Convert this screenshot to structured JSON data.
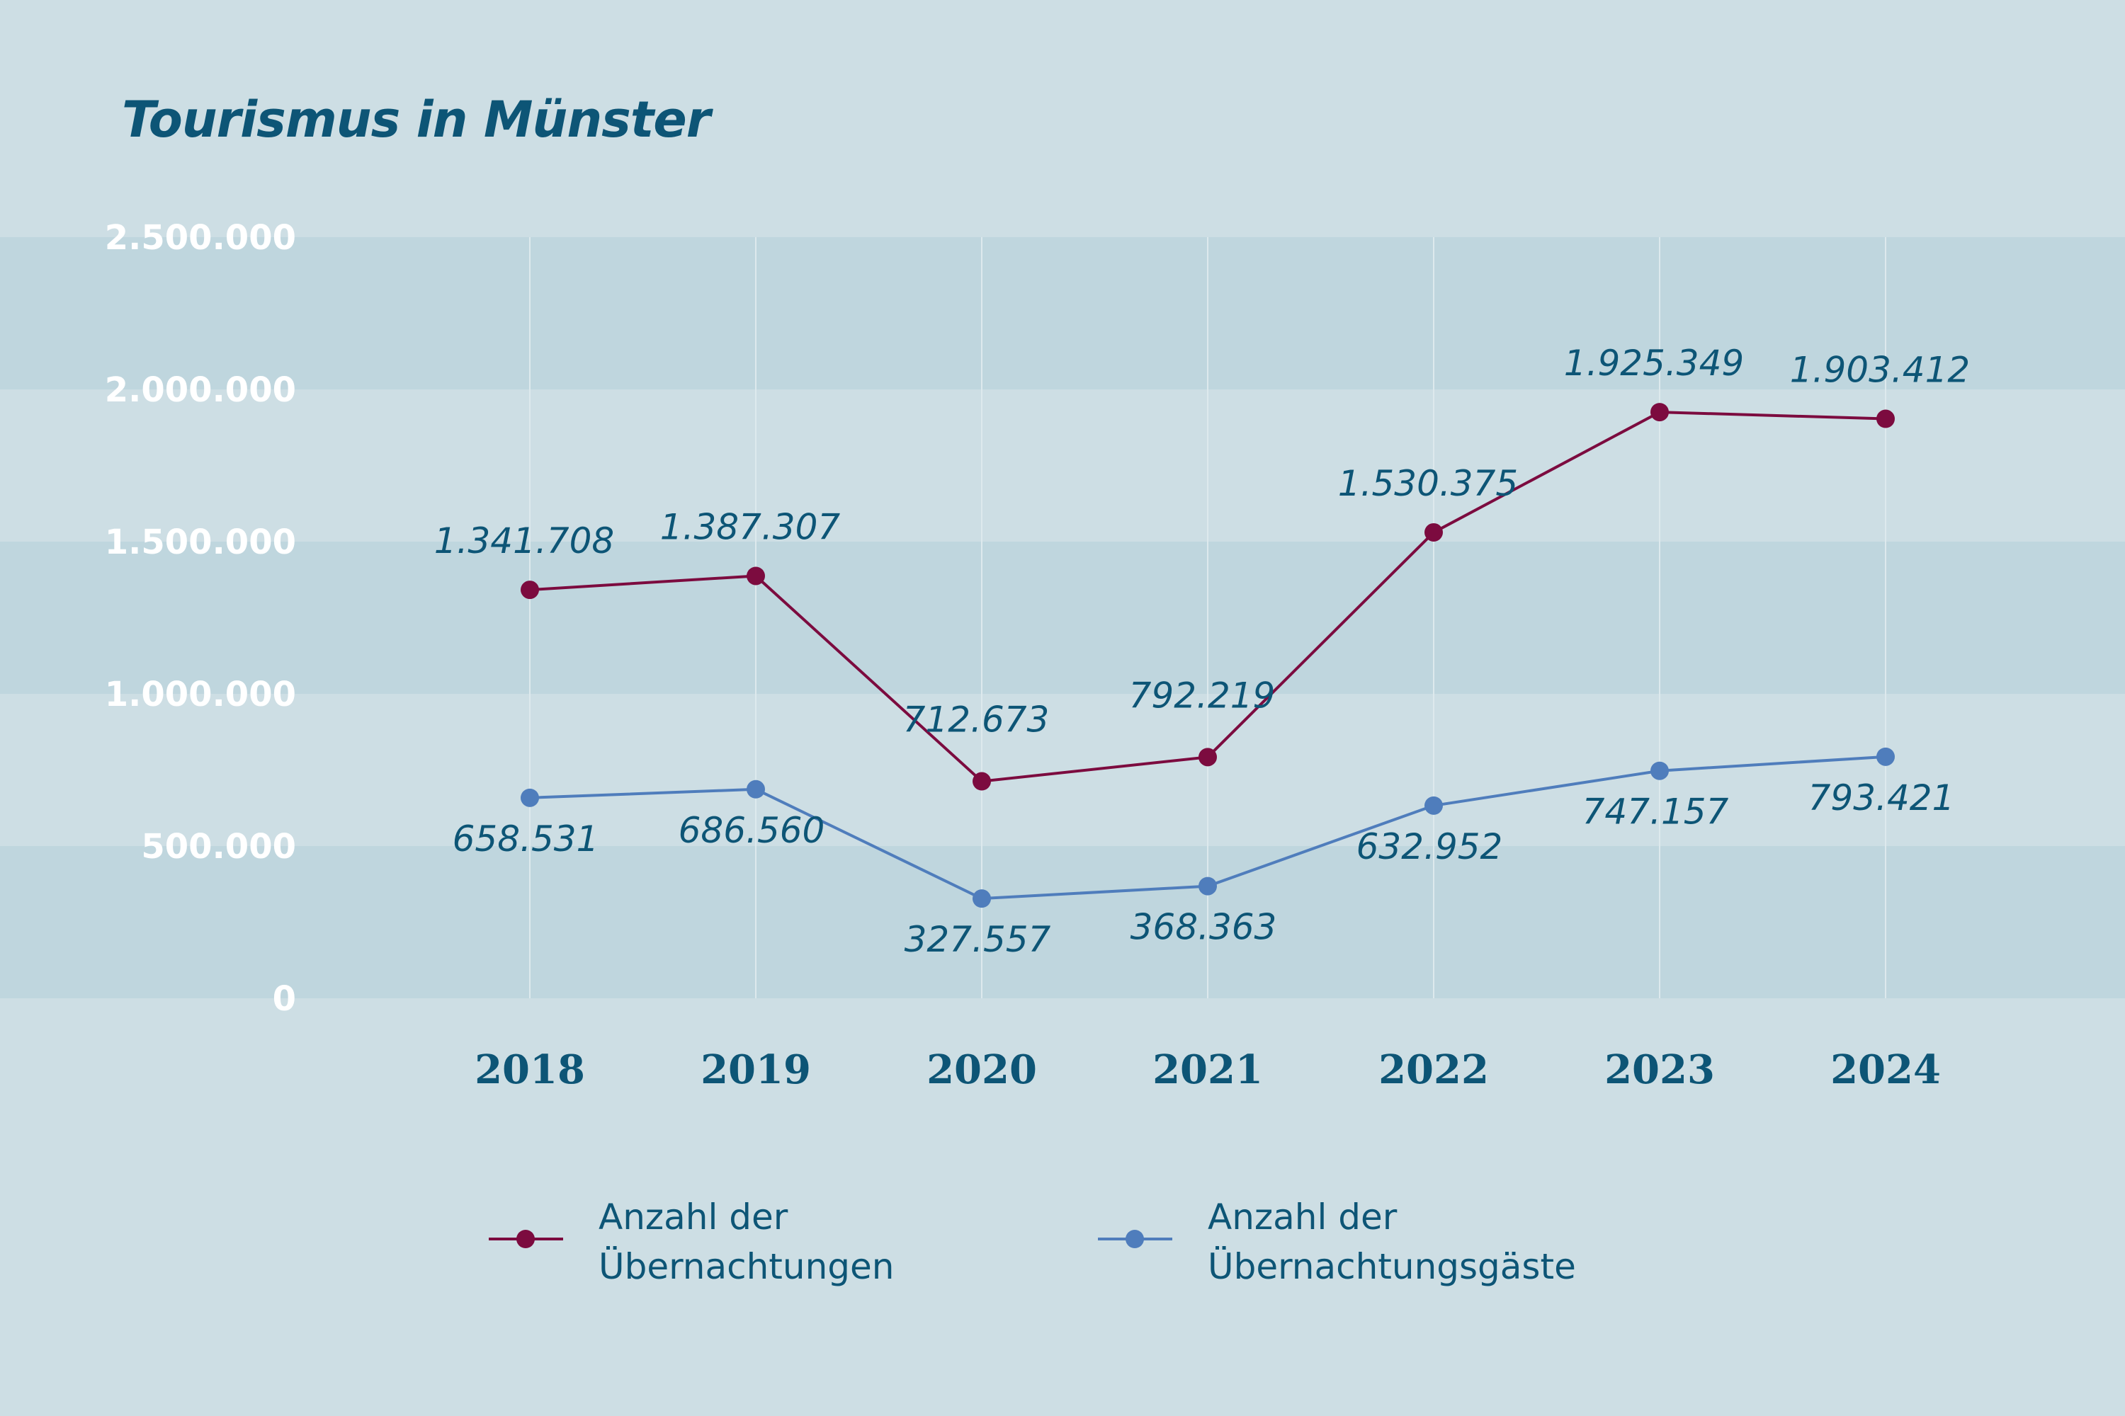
{
  "title": "Tourismus in Münster",
  "colors": {
    "background": "#cddee4",
    "band": "#bfd6de",
    "text": "#0d5576",
    "series1": "#7c0b3f",
    "series2": "#4f7dbc"
  },
  "chart_data": {
    "type": "line",
    "title": "Tourismus in Münster",
    "xlabel": "",
    "ylabel": "",
    "categories": [
      "2018",
      "2019",
      "2020",
      "2021",
      "2022",
      "2023",
      "2024"
    ],
    "ylim": [
      0,
      2500000
    ],
    "yticks": [
      0,
      500000,
      1000000,
      1500000,
      2000000,
      2500000
    ],
    "ytick_labels": [
      "0",
      "500.000",
      "1.000.000",
      "1.500.000",
      "2.000.000",
      "2.500.000"
    ],
    "grid": "vertical lines, alternating horizontal bands",
    "legend_position": "bottom",
    "series": [
      {
        "name": "Anzahl der Übernachtungen",
        "legend_lines": [
          "Anzahl der",
          "Übernachtungen"
        ],
        "color": "#7c0b3f",
        "values": [
          1341708,
          1387307,
          712673,
          792219,
          1530375,
          1925349,
          1903412
        ],
        "labels": [
          "1.341.708",
          "1.387.307",
          "712.673",
          "792.219",
          "1.530.375",
          "1.925.349",
          "1.903.412"
        ]
      },
      {
        "name": "Anzahl der Übernachtungsgäste",
        "legend_lines": [
          "Anzahl der",
          "Übernachtungsgäste"
        ],
        "color": "#4f7dbc",
        "values": [
          658531,
          686560,
          327557,
          368363,
          632952,
          747157,
          793421
        ],
        "labels": [
          "658.531",
          "686.560",
          "327.557",
          "368.363",
          "632.952",
          "747.157",
          "793.421"
        ]
      }
    ]
  }
}
